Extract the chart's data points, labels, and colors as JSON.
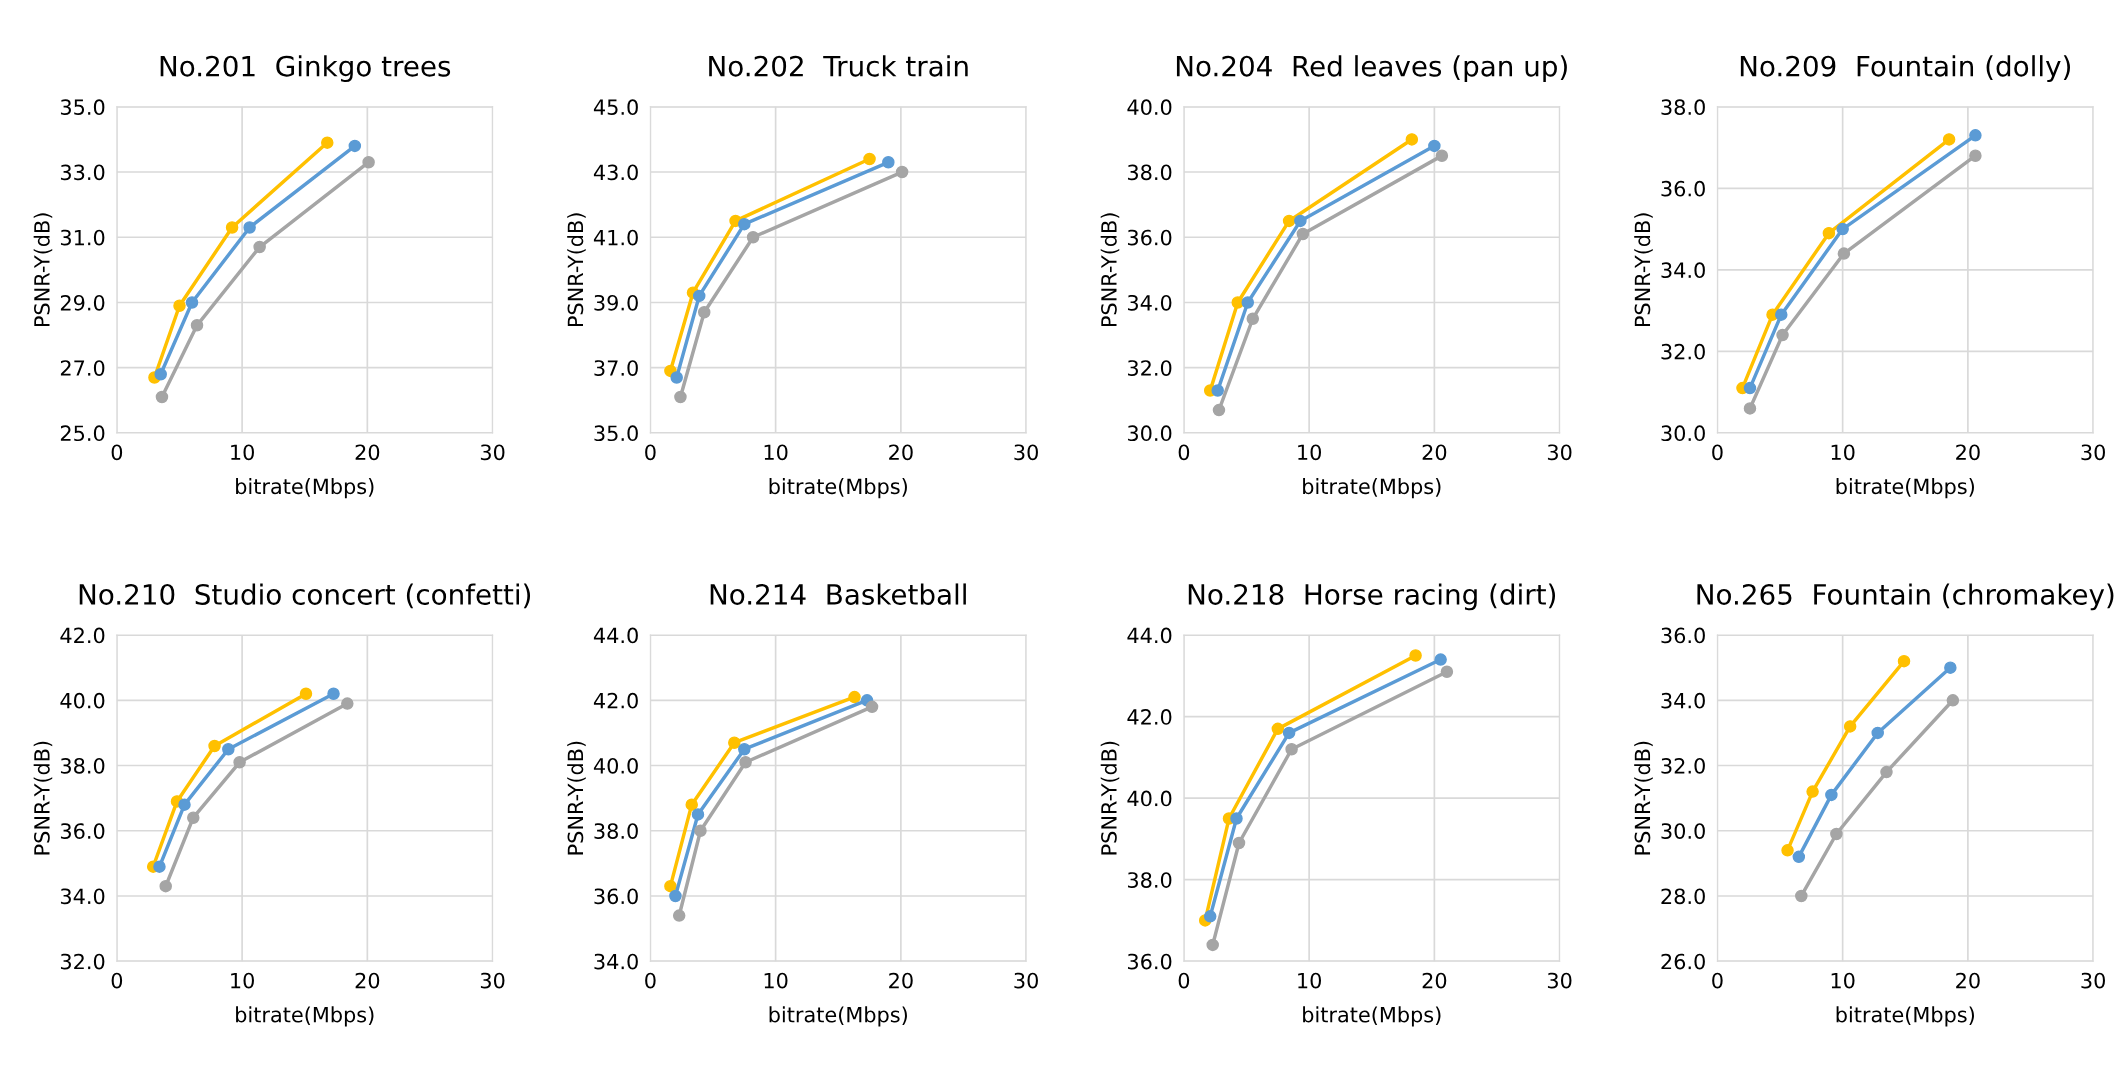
{
  "chart_data": [
    {
      "type": "line",
      "title": "No.201  Ginkgo trees",
      "xlabel": "bitrate(Mbps)",
      "ylabel": "PSNR-Y(dB)",
      "xlim": [
        0,
        30
      ],
      "xticks": [
        0,
        10,
        20,
        30
      ],
      "ylim": [
        25,
        35
      ],
      "yticks": [
        {
          "value": 25,
          "label": "25.0"
        },
        {
          "value": 27,
          "label": "27.0"
        },
        {
          "value": 29,
          "label": "29.0"
        },
        {
          "value": 31,
          "label": "31.0"
        },
        {
          "value": 33,
          "label": "33.0"
        },
        {
          "value": 35,
          "label": "35.0"
        }
      ],
      "grid": true,
      "marker": "circle",
      "line_style": "solid",
      "series": [
        {
          "color": "#ffc000",
          "x": [
            3,
            5,
            9.2,
            16.8
          ],
          "values": [
            26.7,
            28.9,
            31.3,
            33.9
          ]
        },
        {
          "color": "#5b9bd5",
          "x": [
            3.5,
            6,
            10.6,
            19
          ],
          "values": [
            26.8,
            29.0,
            31.3,
            33.8
          ]
        },
        {
          "color": "#a5a5a5",
          "x": [
            3.6,
            6.4,
            11.4,
            20.1
          ],
          "values": [
            26.1,
            28.3,
            30.7,
            33.3
          ]
        }
      ]
    },
    {
      "type": "line",
      "title": "No.202  Truck train",
      "xlabel": "bitrate(Mbps)",
      "ylabel": "PSNR-Y(dB)",
      "xlim": [
        0,
        30
      ],
      "xticks": [
        0,
        10,
        20,
        30
      ],
      "ylim": [
        35,
        45
      ],
      "yticks": [
        {
          "value": 35,
          "label": "35.0"
        },
        {
          "value": 37,
          "label": "37.0"
        },
        {
          "value": 39,
          "label": "39.0"
        },
        {
          "value": 41,
          "label": "41.0"
        },
        {
          "value": 43,
          "label": "43.0"
        },
        {
          "value": 45,
          "label": "45.0"
        }
      ],
      "grid": true,
      "marker": "circle",
      "line_style": "solid",
      "series": [
        {
          "color": "#ffc000",
          "x": [
            1.6,
            3.4,
            6.8,
            17.5
          ],
          "values": [
            36.9,
            39.3,
            41.5,
            43.4
          ]
        },
        {
          "color": "#5b9bd5",
          "x": [
            2.1,
            3.9,
            7.5,
            19
          ],
          "values": [
            36.7,
            39.2,
            41.4,
            43.3
          ]
        },
        {
          "color": "#a5a5a5",
          "x": [
            2.4,
            4.3,
            8.2,
            20.1
          ],
          "values": [
            36.1,
            38.7,
            41.0,
            43.0
          ]
        }
      ]
    },
    {
      "type": "line",
      "title": "No.204  Red leaves (pan up)",
      "xlabel": "bitrate(Mbps)",
      "ylabel": "PSNR-Y(dB)",
      "xlim": [
        0,
        30
      ],
      "xticks": [
        0,
        10,
        20,
        30
      ],
      "ylim": [
        30,
        40
      ],
      "yticks": [
        {
          "value": 30,
          "label": "30.0"
        },
        {
          "value": 32,
          "label": "32.0"
        },
        {
          "value": 34,
          "label": "34.0"
        },
        {
          "value": 36,
          "label": "36.0"
        },
        {
          "value": 38,
          "label": "38.0"
        },
        {
          "value": 40,
          "label": "40.0"
        }
      ],
      "grid": true,
      "marker": "circle",
      "line_style": "solid",
      "series": [
        {
          "color": "#ffc000",
          "x": [
            2.1,
            4.3,
            8.4,
            18.2
          ],
          "values": [
            31.3,
            34.0,
            36.5,
            39.0
          ]
        },
        {
          "color": "#5b9bd5",
          "x": [
            2.7,
            5.1,
            9.3,
            20.0
          ],
          "values": [
            31.3,
            34.0,
            36.5,
            38.8
          ]
        },
        {
          "color": "#a5a5a5",
          "x": [
            2.8,
            5.5,
            9.5,
            20.6
          ],
          "values": [
            30.7,
            33.5,
            36.1,
            38.5
          ]
        }
      ]
    },
    {
      "type": "line",
      "title": "No.209  Fountain (dolly)",
      "xlabel": "bitrate(Mbps)",
      "ylabel": "PSNR-Y(dB)",
      "xlim": [
        0,
        30
      ],
      "xticks": [
        0,
        10,
        20,
        30
      ],
      "ylim": [
        30,
        38
      ],
      "yticks": [
        {
          "value": 30,
          "label": "30.0"
        },
        {
          "value": 32,
          "label": "32.0"
        },
        {
          "value": 34,
          "label": "34.0"
        },
        {
          "value": 36,
          "label": "36.0"
        },
        {
          "value": 38,
          "label": "38.0"
        }
      ],
      "grid": true,
      "marker": "circle",
      "line_style": "solid",
      "series": [
        {
          "color": "#ffc000",
          "x": [
            2.0,
            4.4,
            8.9,
            18.5
          ],
          "values": [
            31.1,
            32.9,
            34.9,
            37.2
          ]
        },
        {
          "color": "#5b9bd5",
          "x": [
            2.6,
            5.1,
            10.0,
            20.6
          ],
          "values": [
            31.1,
            32.9,
            35.0,
            37.3
          ]
        },
        {
          "color": "#a5a5a5",
          "x": [
            2.6,
            5.2,
            10.1,
            20.6
          ],
          "values": [
            30.6,
            32.4,
            34.4,
            36.8
          ]
        }
      ]
    },
    {
      "type": "line",
      "title": "No.210  Studio concert (confetti)",
      "xlabel": "bitrate(Mbps)",
      "ylabel": "PSNR-Y(dB)",
      "xlim": [
        0,
        30
      ],
      "xticks": [
        0,
        10,
        20,
        30
      ],
      "ylim": [
        32,
        42
      ],
      "yticks": [
        {
          "value": 32,
          "label": "32.0"
        },
        {
          "value": 34,
          "label": "34.0"
        },
        {
          "value": 36,
          "label": "36.0"
        },
        {
          "value": 38,
          "label": "38.0"
        },
        {
          "value": 40,
          "label": "40.0"
        },
        {
          "value": 42,
          "label": "42.0"
        }
      ],
      "grid": true,
      "marker": "circle",
      "line_style": "solid",
      "series": [
        {
          "color": "#ffc000",
          "x": [
            2.9,
            4.8,
            7.8,
            15.1
          ],
          "values": [
            34.9,
            36.9,
            38.6,
            40.2
          ]
        },
        {
          "color": "#5b9bd5",
          "x": [
            3.4,
            5.4,
            8.9,
            17.3
          ],
          "values": [
            34.9,
            36.8,
            38.5,
            40.2
          ]
        },
        {
          "color": "#a5a5a5",
          "x": [
            3.9,
            6.1,
            9.8,
            18.4
          ],
          "values": [
            34.3,
            36.4,
            38.1,
            39.9
          ]
        }
      ]
    },
    {
      "type": "line",
      "title": "No.214  Basketball",
      "xlabel": "bitrate(Mbps)",
      "ylabel": "PSNR-Y(dB)",
      "xlim": [
        0,
        30
      ],
      "xticks": [
        0,
        10,
        20,
        30
      ],
      "ylim": [
        34,
        44
      ],
      "yticks": [
        {
          "value": 34,
          "label": "34.0"
        },
        {
          "value": 36,
          "label": "36.0"
        },
        {
          "value": 38,
          "label": "38.0"
        },
        {
          "value": 40,
          "label": "40.0"
        },
        {
          "value": 42,
          "label": "42.0"
        },
        {
          "value": 44,
          "label": "44.0"
        }
      ],
      "grid": true,
      "marker": "circle",
      "line_style": "solid",
      "series": [
        {
          "color": "#ffc000",
          "x": [
            1.6,
            3.3,
            6.7,
            16.3
          ],
          "values": [
            36.3,
            38.8,
            40.7,
            42.1
          ]
        },
        {
          "color": "#5b9bd5",
          "x": [
            2.0,
            3.8,
            7.5,
            17.3
          ],
          "values": [
            36.0,
            38.5,
            40.5,
            42.0
          ]
        },
        {
          "color": "#a5a5a5",
          "x": [
            2.3,
            4.0,
            7.6,
            17.7
          ],
          "values": [
            35.4,
            38.0,
            40.1,
            41.8
          ]
        }
      ]
    },
    {
      "type": "line",
      "title": "No.218  Horse racing (dirt)",
      "xlabel": "bitrate(Mbps)",
      "ylabel": "PSNR-Y(dB)",
      "xlim": [
        0,
        30
      ],
      "xticks": [
        0,
        10,
        20,
        30
      ],
      "ylim": [
        36,
        44
      ],
      "yticks": [
        {
          "value": 36,
          "label": "36.0"
        },
        {
          "value": 38,
          "label": "38.0"
        },
        {
          "value": 40,
          "label": "40.0"
        },
        {
          "value": 42,
          "label": "42.0"
        },
        {
          "value": 44,
          "label": "44.0"
        }
      ],
      "grid": true,
      "marker": "circle",
      "line_style": "solid",
      "series": [
        {
          "color": "#ffc000",
          "x": [
            1.7,
            3.6,
            7.5,
            18.5
          ],
          "values": [
            37.0,
            39.5,
            41.7,
            43.5
          ]
        },
        {
          "color": "#5b9bd5",
          "x": [
            2.1,
            4.2,
            8.4,
            20.5
          ],
          "values": [
            37.1,
            39.5,
            41.6,
            43.4
          ]
        },
        {
          "color": "#a5a5a5",
          "x": [
            2.3,
            4.4,
            8.6,
            21.0
          ],
          "values": [
            36.4,
            38.9,
            41.2,
            43.1
          ]
        }
      ]
    },
    {
      "type": "line",
      "title": "No.265  Fountain (chromakey)",
      "xlabel": "bitrate(Mbps)",
      "ylabel": "PSNR-Y(dB)",
      "xlim": [
        0,
        30
      ],
      "xticks": [
        0,
        10,
        20,
        30
      ],
      "ylim": [
        26,
        36
      ],
      "yticks": [
        {
          "value": 26,
          "label": "26.0"
        },
        {
          "value": 28,
          "label": "28.0"
        },
        {
          "value": 30,
          "label": "30.0"
        },
        {
          "value": 32,
          "label": "32.0"
        },
        {
          "value": 34,
          "label": "34.0"
        },
        {
          "value": 36,
          "label": "36.0"
        }
      ],
      "grid": true,
      "marker": "circle",
      "line_style": "solid",
      "series": [
        {
          "color": "#ffc000",
          "x": [
            5.6,
            7.6,
            10.6,
            14.9
          ],
          "values": [
            29.4,
            31.2,
            33.2,
            35.2
          ]
        },
        {
          "color": "#5b9bd5",
          "x": [
            6.5,
            9.1,
            12.8,
            18.6
          ],
          "values": [
            29.2,
            31.1,
            33.0,
            35.0
          ]
        },
        {
          "color": "#a5a5a5",
          "x": [
            6.7,
            9.5,
            13.5,
            18.8
          ],
          "values": [
            28.0,
            29.9,
            31.8,
            34.0
          ]
        }
      ]
    }
  ]
}
